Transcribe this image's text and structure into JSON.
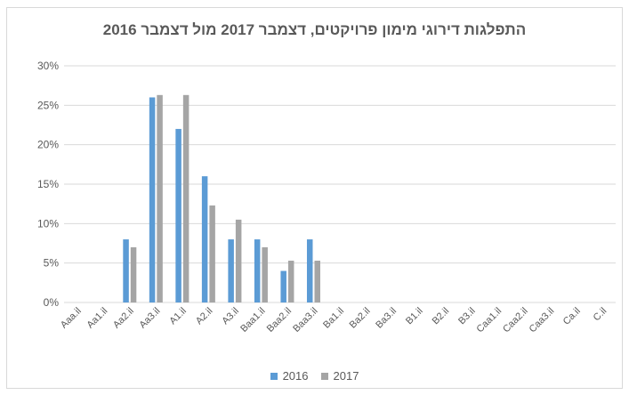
{
  "chart_data": {
    "type": "bar",
    "title": "התפלגות דירוגי מימון פרויקטים, דצמבר 2017 מול דצמבר 2016",
    "xlabel": "",
    "ylabel": "",
    "ylim": [
      0,
      30
    ],
    "yticks": [
      "0%",
      "5%",
      "10%",
      "15%",
      "20%",
      "25%",
      "30%"
    ],
    "categories": [
      "Aaa.il",
      "Aa1.il",
      "Aa2.il",
      "Aa3.il",
      "A1.il",
      "A2.il",
      "A3.il",
      "Baa1.il",
      "Baa2.il",
      "Baa3.il",
      "Ba1.il",
      "Ba2.il",
      "Ba3.il",
      "B1.il",
      "B2.il",
      "B3.il",
      "Caa1.il",
      "Caa2.il",
      "Caa3.il",
      "Ca.il",
      "C.il"
    ],
    "series": [
      {
        "name": "2016",
        "color": "#5b9bd5",
        "values": [
          0,
          0,
          8,
          26,
          22,
          16,
          8,
          8,
          4,
          8,
          0,
          0,
          0,
          0,
          0,
          0,
          0,
          0,
          0,
          0,
          0
        ]
      },
      {
        "name": "2017",
        "color": "#a5a5a5",
        "values": [
          0,
          0,
          7,
          26.3,
          26.3,
          12.3,
          10.5,
          7,
          5.3,
          5.3,
          0,
          0,
          0,
          0,
          0,
          0,
          0,
          0,
          0,
          0,
          0
        ]
      }
    ],
    "grid": true,
    "legend": "bottom"
  }
}
